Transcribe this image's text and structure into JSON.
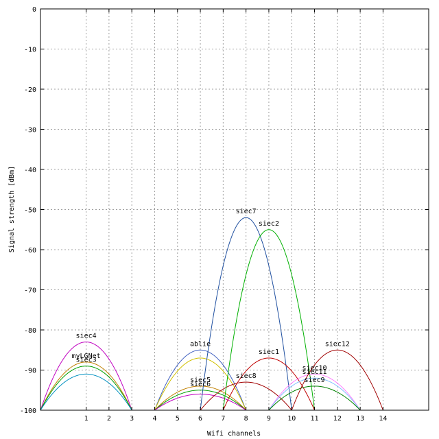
{
  "chart_data": {
    "type": "line",
    "title": "",
    "xlabel": "Wifi channels",
    "ylabel": "Signal strength [dBm]",
    "xlim": [
      -1,
      16
    ],
    "ylim": [
      -100,
      0
    ],
    "grid": true,
    "x_ticks": [
      1,
      2,
      3,
      4,
      5,
      6,
      7,
      8,
      9,
      10,
      11,
      12,
      13,
      14
    ],
    "y_ticks": [
      0,
      -10,
      -20,
      -30,
      -40,
      -50,
      -60,
      -70,
      -80,
      -90,
      -100
    ],
    "series": [
      {
        "name": "siec4",
        "channel": 1,
        "peak": -83,
        "color": "#c000c0"
      },
      {
        "name": "myLGNet",
        "channel": 1,
        "peak": -88,
        "color": "#c08000"
      },
      {
        "name": "siec3",
        "channel": 1,
        "peak": -89,
        "color": "#00a000"
      },
      {
        "name": "",
        "channel": 1,
        "peak": -91,
        "color": "#0090c0"
      },
      {
        "name": "ablie",
        "channel": 6,
        "peak": -85,
        "color": "#4060c0"
      },
      {
        "name": "",
        "channel": 6,
        "peak": -87,
        "color": "#d0c000"
      },
      {
        "name": "siec5",
        "channel": 6,
        "peak": -94,
        "color": "#c08000"
      },
      {
        "name": "siec6",
        "channel": 6,
        "peak": -95,
        "color": "#00a000"
      },
      {
        "name": "",
        "channel": 6,
        "peak": -96,
        "color": "#c000c0"
      },
      {
        "name": "siec7",
        "channel": 8,
        "peak": -52,
        "color": "#2050a0"
      },
      {
        "name": "siec8",
        "channel": 8,
        "peak": -93,
        "color": "#a00000"
      },
      {
        "name": "siec2",
        "channel": 9,
        "peak": -55,
        "color": "#00b000"
      },
      {
        "name": "siec1",
        "channel": 9,
        "peak": -87,
        "color": "#c00000"
      },
      {
        "name": "siec10",
        "channel": 11,
        "peak": -91,
        "color": "#ff80ff"
      },
      {
        "name": "siec11",
        "channel": 11,
        "peak": -92,
        "color": "#80c0ff"
      },
      {
        "name": "siec9",
        "channel": 11,
        "peak": -94,
        "color": "#008000"
      },
      {
        "name": "siec12",
        "channel": 12,
        "peak": -85,
        "color": "#a00000"
      }
    ]
  }
}
